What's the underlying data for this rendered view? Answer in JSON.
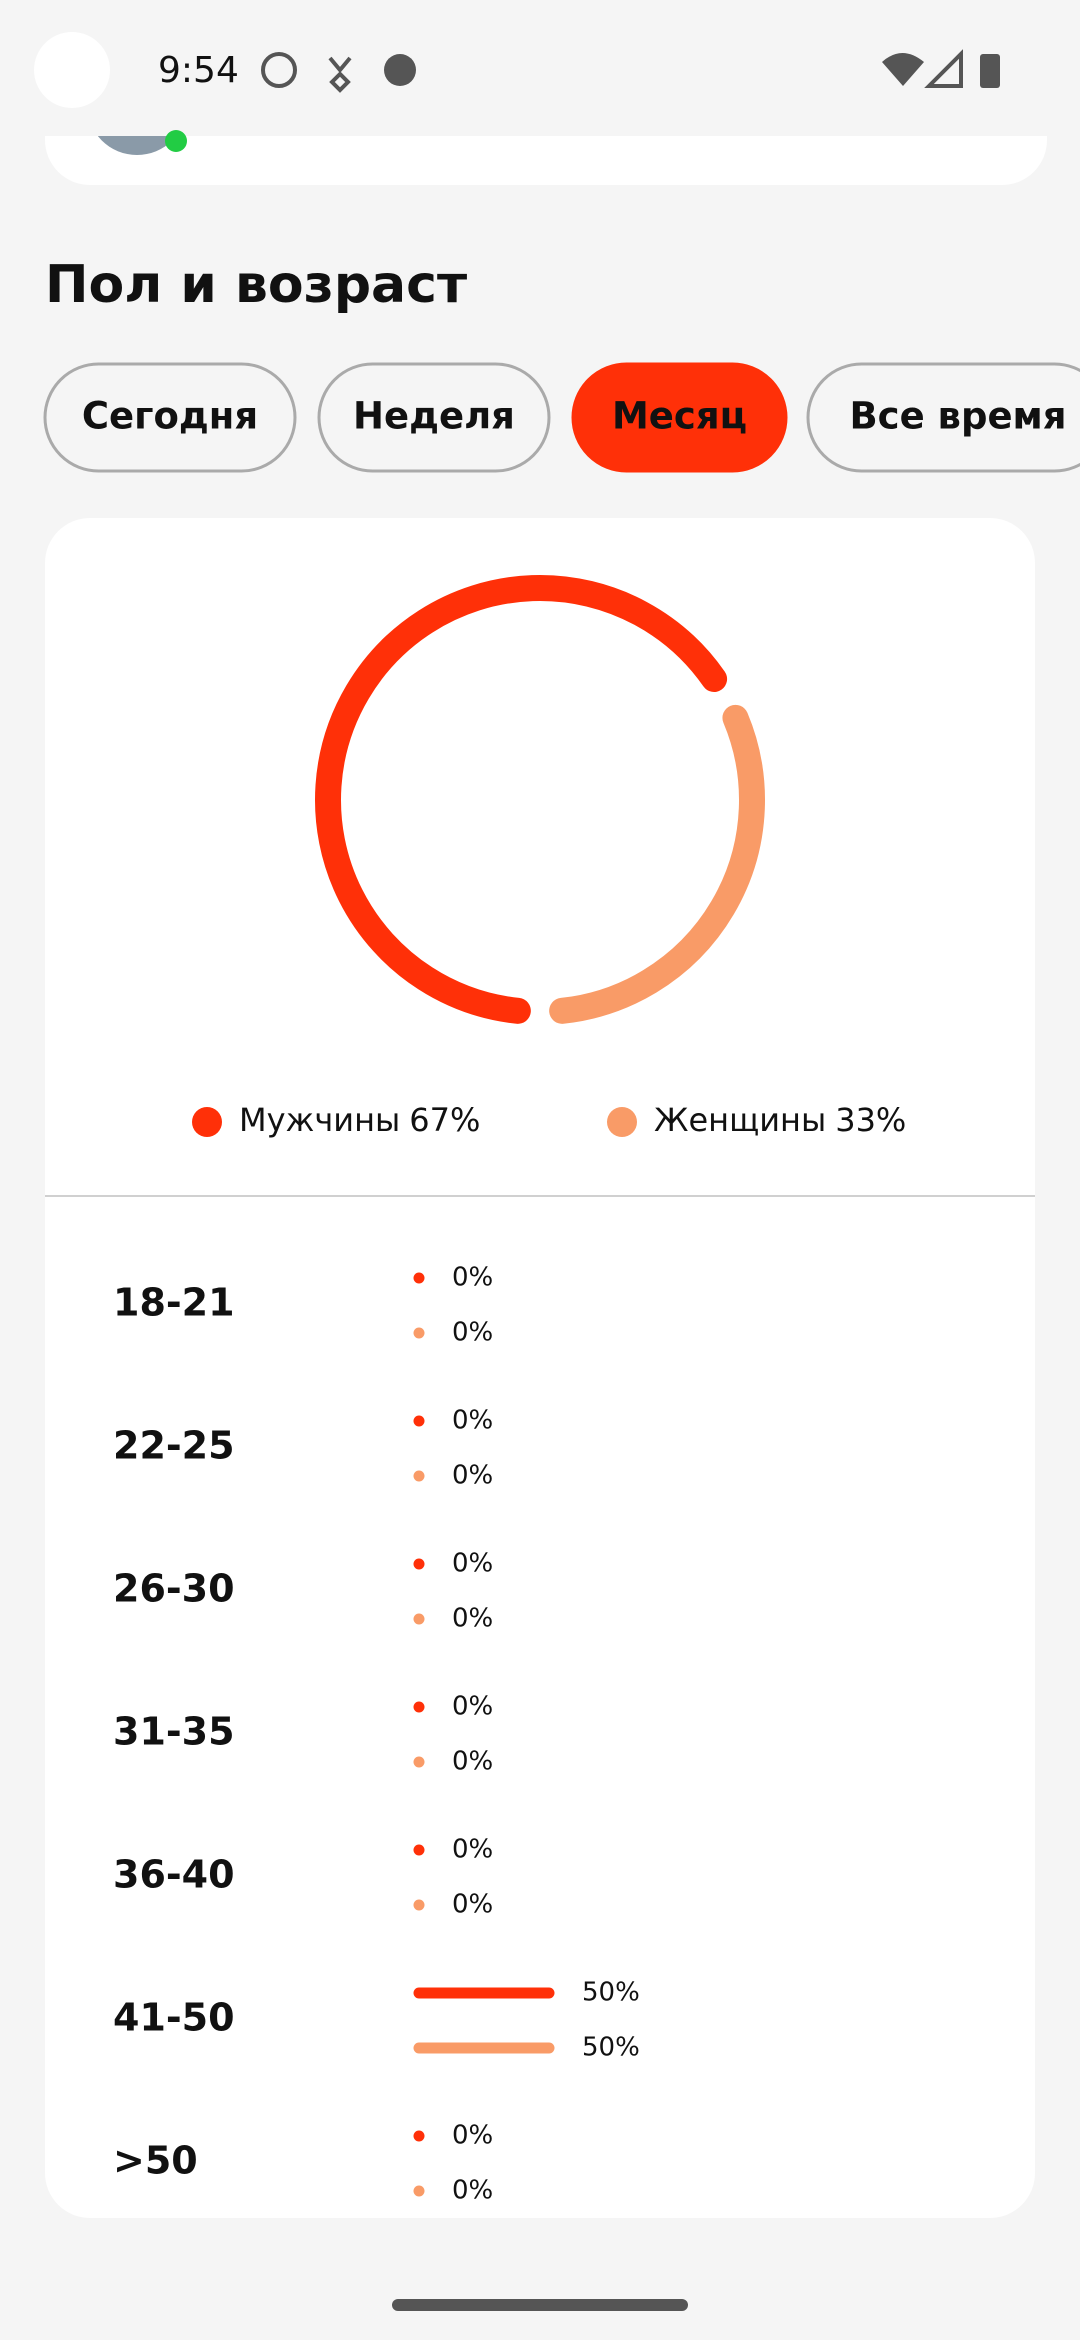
{
  "status_bar": {
    "time": "9:54"
  },
  "section_title": "Пол и возраст",
  "tabs": [
    "Сегодня",
    "Неделя",
    "Месяц",
    "Все время"
  ],
  "selected_tab": 2,
  "gender_chart": {
    "type": "donut",
    "series": [
      {
        "name": "Мужчины",
        "value": 67,
        "value_label": "67%",
        "color": "#ff3008"
      },
      {
        "name": "Женщины",
        "value": 33,
        "value_label": "33%",
        "color": "#f99b67"
      }
    ]
  },
  "age_chart": {
    "type": "bar",
    "categories": [
      "18-21",
      "22-25",
      "26-30",
      "31-35",
      "36-40",
      "41-50",
      ">50"
    ],
    "xlim": [
      0,
      100
    ],
    "series": [
      {
        "color": "#ff3008",
        "values": [
          0,
          0,
          0,
          0,
          0,
          50,
          0
        ],
        "value_labels": [
          "0%",
          "0%",
          "0%",
          "0%",
          "0%",
          "50%",
          "0%"
        ]
      },
      {
        "color": "#f99b67",
        "values": [
          0,
          0,
          0,
          0,
          0,
          50,
          0
        ],
        "value_labels": [
          "0%",
          "0%",
          "0%",
          "0%",
          "0%",
          "50%",
          "0%"
        ]
      }
    ]
  }
}
